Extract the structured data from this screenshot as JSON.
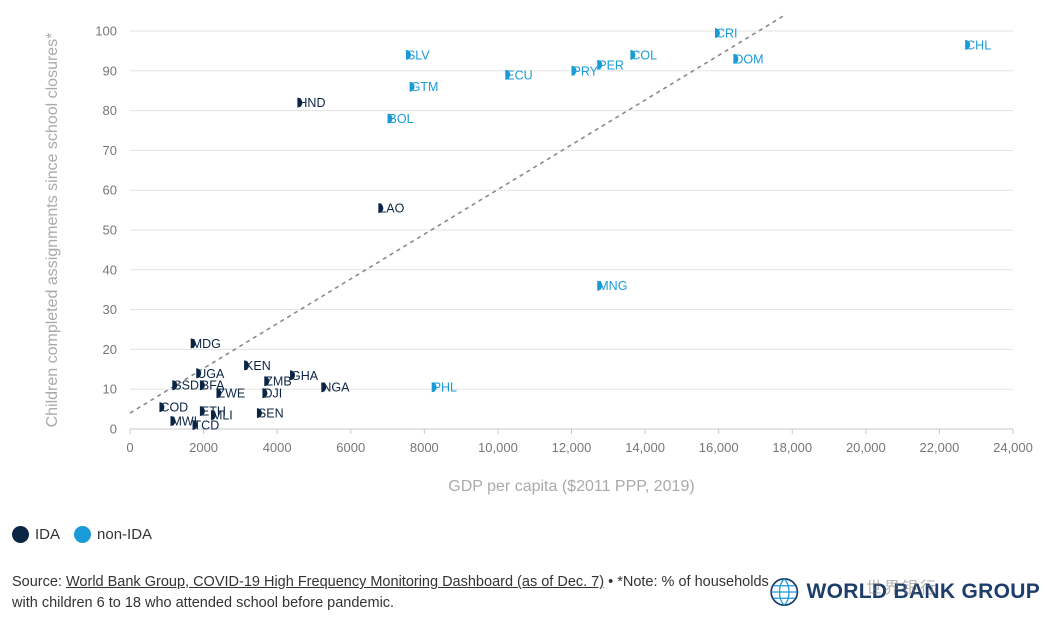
{
  "chart_data": {
    "type": "scatter",
    "title": "",
    "xlabel": "GDP per capita ($2011 PPP, 2019)",
    "ylabel": "Children completed assignments since school closures*",
    "xlim": [
      0,
      24000
    ],
    "ylim": [
      0,
      100
    ],
    "xticks": [
      0,
      2000,
      4000,
      6000,
      8000,
      10000,
      12000,
      14000,
      16000,
      18000,
      20000,
      22000,
      24000
    ],
    "xtick_labels": [
      "0",
      "2000",
      "4000",
      "6000",
      "8000",
      "10,000",
      "12,000",
      "14,000",
      "16,000",
      "18,000",
      "20,000",
      "22,000",
      "24,000"
    ],
    "yticks": [
      0,
      10,
      20,
      30,
      40,
      50,
      60,
      70,
      80,
      90,
      100
    ],
    "ytick_labels": [
      "0",
      "10",
      "20",
      "30",
      "40",
      "50",
      "60",
      "70",
      "80",
      "90",
      "100"
    ],
    "grid": "horizontal",
    "trendline": {
      "style": "dashed",
      "x": [
        0,
        17800
      ],
      "y": [
        4,
        104
      ]
    },
    "series": [
      {
        "name": "IDA",
        "color": "#0b2545",
        "points": [
          {
            "label": "HND",
            "x": 4550,
            "y": 82
          },
          {
            "label": "LAO",
            "x": 6750,
            "y": 55.5
          },
          {
            "label": "MDG",
            "x": 1650,
            "y": 21.5
          },
          {
            "label": "KEN",
            "x": 3100,
            "y": 16
          },
          {
            "label": "UGA",
            "x": 1800,
            "y": 14
          },
          {
            "label": "GHA",
            "x": 4350,
            "y": 13.5
          },
          {
            "label": "ZMB",
            "x": 3650,
            "y": 12
          },
          {
            "label": "SSD",
            "x": 1150,
            "y": 11
          },
          {
            "label": "BFA",
            "x": 1900,
            "y": 11
          },
          {
            "label": "NGA",
            "x": 5200,
            "y": 10.5
          },
          {
            "label": "ZWE",
            "x": 2350,
            "y": 9
          },
          {
            "label": "DJI",
            "x": 3600,
            "y": 9
          },
          {
            "label": "COD",
            "x": 800,
            "y": 5.5
          },
          {
            "label": "ETH",
            "x": 1900,
            "y": 4.5
          },
          {
            "label": "MLI",
            "x": 2200,
            "y": 3.5
          },
          {
            "label": "SEN",
            "x": 3450,
            "y": 4
          },
          {
            "label": "MWI",
            "x": 1100,
            "y": 2
          },
          {
            "label": "TCD",
            "x": 1700,
            "y": 1
          }
        ]
      },
      {
        "name": "non-IDA",
        "color": "#1a9bd7",
        "points": [
          {
            "label": "CRI",
            "x": 15900,
            "y": 99.5
          },
          {
            "label": "CHL",
            "x": 22700,
            "y": 96.5
          },
          {
            "label": "SLV",
            "x": 7500,
            "y": 94
          },
          {
            "label": "COL",
            "x": 13600,
            "y": 94
          },
          {
            "label": "DOM",
            "x": 16400,
            "y": 93
          },
          {
            "label": "PER",
            "x": 12700,
            "y": 91.5
          },
          {
            "label": "PRY",
            "x": 12000,
            "y": 90
          },
          {
            "label": "ECU",
            "x": 10200,
            "y": 89
          },
          {
            "label": "GTM",
            "x": 7600,
            "y": 86
          },
          {
            "label": "BOL",
            "x": 7000,
            "y": 78
          },
          {
            "label": "MNG",
            "x": 12700,
            "y": 36
          },
          {
            "label": "PHL",
            "x": 8200,
            "y": 10.5
          }
        ]
      }
    ]
  },
  "legend": {
    "items": [
      {
        "label": "IDA",
        "color": "#0b2545"
      },
      {
        "label": "non-IDA",
        "color": "#1a9bd7"
      }
    ]
  },
  "footer": {
    "prefix": "Source: ",
    "link_text": "World Bank Group, COVID-19 High Frequency Monitoring Dashboard (as of Dec. 7)",
    "note": " • *Note: % of households with children 6 to 18 who attended school before pandemic."
  },
  "brand": {
    "name": "WORLD BANK GROUP",
    "watermark": "世界银行"
  }
}
